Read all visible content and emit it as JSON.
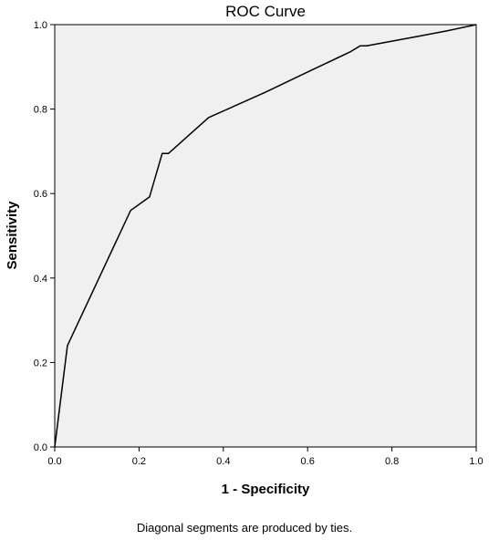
{
  "chart_data": {
    "type": "line",
    "title": "ROC Curve",
    "xlabel": "1 - Specificity",
    "ylabel": "Sensitivity",
    "xlim": [
      0.0,
      1.0
    ],
    "ylim": [
      0.0,
      1.0
    ],
    "xticks": [
      "0.0",
      "0.2",
      "0.4",
      "0.6",
      "0.8",
      "1.0"
    ],
    "yticks": [
      "0.0",
      "0.2",
      "0.4",
      "0.6",
      "0.8",
      "1.0"
    ],
    "grid": false,
    "legend": "none",
    "background_color": "#f0f0f0",
    "line_color": "#000000",
    "series": [
      {
        "x": [
          0.0,
          0.03,
          0.18,
          0.225,
          0.255,
          0.27,
          0.365,
          0.5,
          0.6,
          0.7,
          0.725,
          0.74,
          0.85,
          0.93,
          1.0
        ],
        "y": [
          0.0,
          0.24,
          0.56,
          0.592,
          0.695,
          0.695,
          0.78,
          0.84,
          0.888,
          0.935,
          0.95,
          0.95,
          0.97,
          0.985,
          1.0
        ]
      }
    ],
    "footnote": "Diagonal segments are produced by ties."
  }
}
